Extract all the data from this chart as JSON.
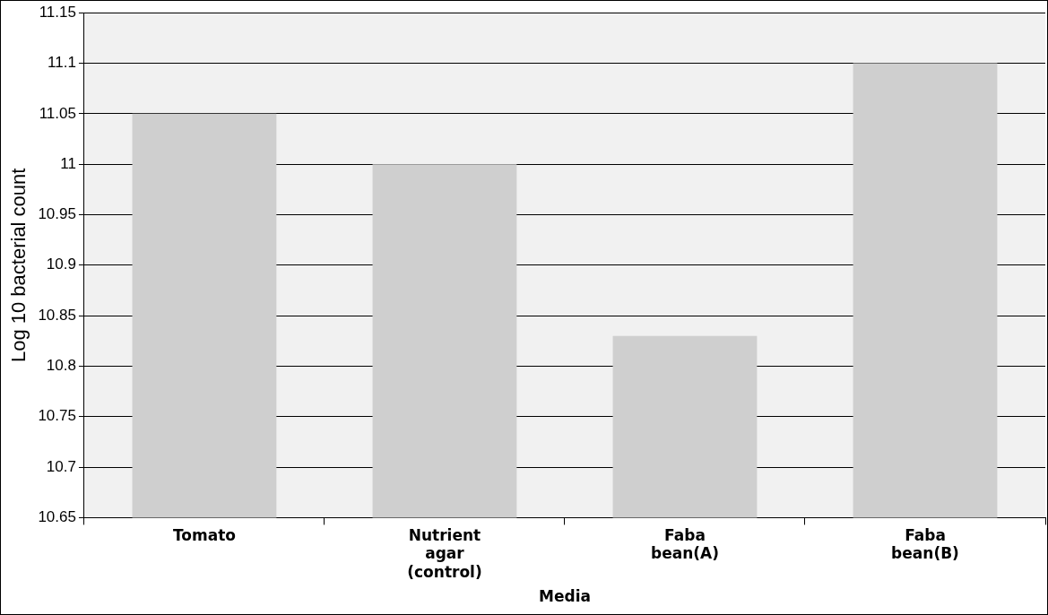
{
  "chart_data": {
    "type": "bar",
    "xlabel": "Media",
    "ylabel": "Log 10 bacterial count",
    "categories": [
      "Tomato",
      "Nutrient agar (control)",
      "Faba bean(A)",
      "Faba bean(B)"
    ],
    "values": [
      11.05,
      11.0,
      10.83,
      11.1
    ],
    "color": "#cfcfcf",
    "ylim": [
      10.65,
      11.15
    ],
    "yticks": [
      10.65,
      10.7,
      10.75,
      10.8,
      10.85,
      10.9,
      10.95,
      11,
      11.05,
      11.1,
      11.15
    ],
    "grid": "y"
  }
}
